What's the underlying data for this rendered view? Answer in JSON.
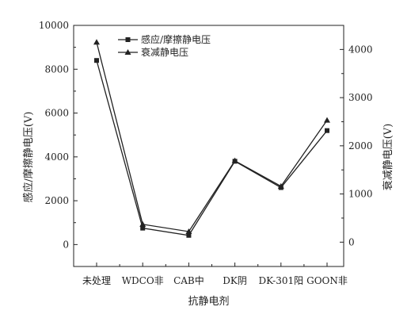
{
  "chart_data": {
    "type": "line",
    "title": "",
    "categories": [
      "未处理",
      "WDCO非",
      "CAB中",
      "DK阴",
      "DK-301阳",
      "GOON非"
    ],
    "xlabel": "抗静电剂",
    "ylabel": "感应/摩擦静电压(V)",
    "y2label": "衰减静电压(V)",
    "ylim": [
      -1000,
      10000
    ],
    "y2lim": [
      -505,
      4500
    ],
    "yticks": [
      0,
      2000,
      4000,
      6000,
      8000,
      10000
    ],
    "y2ticks": [
      0,
      1000,
      2000,
      3000,
      4000
    ],
    "grid": false,
    "legend_position": "top-center",
    "series": [
      {
        "name": "感应/摩擦静电压",
        "axis": "left",
        "marker": "square",
        "color": "#222222",
        "values": [
          8400,
          750,
          420,
          3800,
          2600,
          5200
        ]
      },
      {
        "name": "衰减静电压",
        "axis": "right",
        "marker": "triangle",
        "color": "#222222",
        "values": [
          4150,
          370,
          220,
          1690,
          1160,
          2530
        ]
      }
    ]
  }
}
